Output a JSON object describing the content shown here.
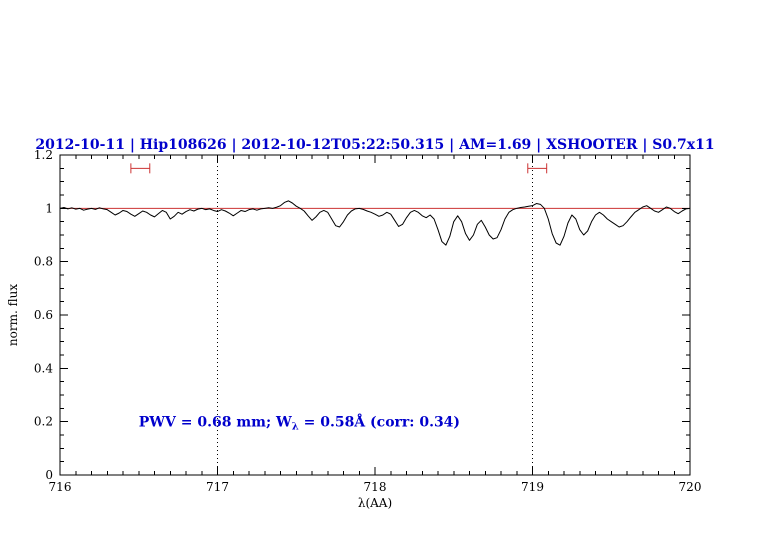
{
  "chart_data": {
    "type": "line",
    "title": "2012-10-11 | Hip108626 | 2012-10-12T05:22:50.315 | AM=1.69 | XSHOOTER | S0.7x11",
    "xlabel": "λ(AA)",
    "ylabel": "norm. flux",
    "xlim": [
      716,
      720
    ],
    "ylim": [
      0,
      1.2
    ],
    "x_ticks": [
      716,
      717,
      718,
      719,
      720
    ],
    "x_tick_labels": [
      "716",
      "717",
      "718",
      "719",
      "720"
    ],
    "x_minor_step": 0.1,
    "y_ticks": [
      0,
      0.2,
      0.4,
      0.6,
      0.8,
      1,
      1.2
    ],
    "y_tick_labels": [
      "0",
      "0.2",
      "0.4",
      "0.6",
      "0.8",
      "1",
      "1.2"
    ],
    "y_minor_step": 0.05,
    "grid": false,
    "legend": "none",
    "vlines": [
      717,
      719
    ],
    "continuum_level": 1.0,
    "region_markers": [
      {
        "x_start": 716.45,
        "x_end": 716.57,
        "y": 1.15
      },
      {
        "x_start": 718.97,
        "x_end": 719.09,
        "y": 1.15
      }
    ],
    "annotation": {
      "prefix": "PWV = 0.68 mm; W",
      "subscript": "λ",
      "suffix": " = 0.58Å (corr: 0.34)",
      "x": 716.5,
      "y": 0.2
    },
    "series": [
      {
        "name": "normalized spectrum",
        "x_start": 716.0,
        "x_step": 0.025,
        "values": [
          1.0,
          1.003,
          0.998,
          1.002,
          0.997,
          1.0,
          0.993,
          0.997,
          1.0,
          0.996,
          1.002,
          0.998,
          0.995,
          0.985,
          0.975,
          0.982,
          0.992,
          0.988,
          0.978,
          0.97,
          0.98,
          0.99,
          0.985,
          0.975,
          0.968,
          0.98,
          0.992,
          0.985,
          0.96,
          0.97,
          0.985,
          0.978,
          0.988,
          0.995,
          0.99,
          0.997,
          1.0,
          0.995,
          0.998,
          0.992,
          0.988,
          0.995,
          0.99,
          0.982,
          0.972,
          0.982,
          0.992,
          0.988,
          0.995,
          0.998,
          0.993,
          0.998,
          1.0,
          1.002,
          1.0,
          1.004,
          1.01,
          1.022,
          1.028,
          1.02,
          1.008,
          1.0,
          0.99,
          0.972,
          0.955,
          0.968,
          0.985,
          0.992,
          0.985,
          0.96,
          0.935,
          0.93,
          0.95,
          0.975,
          0.99,
          0.998,
          1.0,
          0.996,
          0.99,
          0.985,
          0.978,
          0.97,
          0.975,
          0.985,
          0.978,
          0.955,
          0.932,
          0.94,
          0.965,
          0.985,
          0.992,
          0.985,
          0.972,
          0.965,
          0.975,
          0.96,
          0.92,
          0.875,
          0.862,
          0.895,
          0.95,
          0.972,
          0.95,
          0.905,
          0.88,
          0.9,
          0.94,
          0.955,
          0.93,
          0.9,
          0.885,
          0.89,
          0.92,
          0.96,
          0.985,
          0.995,
          1.0,
          1.003,
          1.005,
          1.008,
          1.01,
          1.018,
          1.015,
          1.0,
          0.96,
          0.905,
          0.87,
          0.862,
          0.895,
          0.945,
          0.975,
          0.96,
          0.92,
          0.9,
          0.915,
          0.95,
          0.975,
          0.985,
          0.975,
          0.96,
          0.95,
          0.94,
          0.93,
          0.935,
          0.95,
          0.968,
          0.985,
          0.995,
          1.005,
          1.01,
          1.0,
          0.99,
          0.985,
          0.995,
          1.005,
          1.0,
          0.988,
          0.98,
          0.99,
          0.998,
          1.0
        ]
      }
    ],
    "colors": {
      "spectrum": "#000000",
      "continuum": "#cc3333",
      "markers": "#cc3333",
      "title": "#0000cc",
      "annotation": "#0000cc",
      "vline": "#000000",
      "axis": "#000000"
    }
  }
}
